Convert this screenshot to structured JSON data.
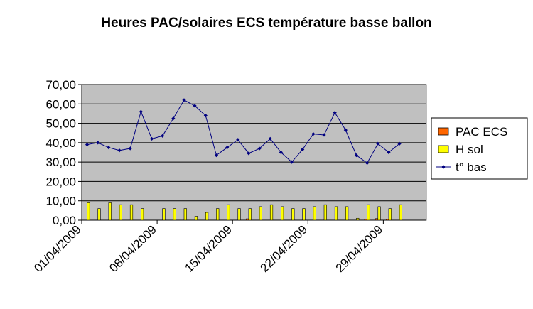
{
  "chart_data": {
    "type": "bar",
    "title": "Heures PAC/solaires ECS  température basse ballon",
    "xlabel": "",
    "ylabel": "",
    "ylim": [
      0,
      70
    ],
    "y_ticks": [
      "0,00",
      "10,00",
      "20,00",
      "30,00",
      "40,00",
      "50,00",
      "60,00",
      "70,00"
    ],
    "x_tick_labels": [
      "01/04/2009",
      "08/04/2009",
      "15/04/2009",
      "22/04/2009",
      "29/04/2009"
    ],
    "x": [
      "01/04/2009",
      "02/04/2009",
      "03/04/2009",
      "04/04/2009",
      "05/04/2009",
      "06/04/2009",
      "07/04/2009",
      "08/04/2009",
      "09/04/2009",
      "10/04/2009",
      "11/04/2009",
      "12/04/2009",
      "13/04/2009",
      "14/04/2009",
      "15/04/2009",
      "16/04/2009",
      "17/04/2009",
      "18/04/2009",
      "19/04/2009",
      "20/04/2009",
      "21/04/2009",
      "22/04/2009",
      "23/04/2009",
      "24/04/2009",
      "25/04/2009",
      "26/04/2009",
      "27/04/2009",
      "28/04/2009",
      "29/04/2009",
      "30/04/2009"
    ],
    "grid": "horizontal",
    "legend_position": "right",
    "background_color": "#c0c0c0",
    "series": [
      {
        "name": "PAC ECS",
        "kind": "bar",
        "color": "#ff6600",
        "values": [
          0,
          0,
          0,
          0,
          0,
          0,
          0,
          0,
          0,
          0,
          0,
          0,
          0,
          0,
          0,
          0.7,
          0,
          0,
          0,
          0,
          0,
          0,
          0,
          0,
          0,
          0,
          0.5,
          0.8,
          0.5,
          0
        ]
      },
      {
        "name": "H sol",
        "kind": "bar",
        "color": "#ffff00",
        "values": [
          9,
          6,
          9,
          8,
          8,
          6,
          0,
          6,
          6,
          6,
          2,
          4,
          6,
          8,
          6,
          6,
          7,
          8,
          7,
          6,
          6,
          7,
          8,
          7,
          7,
          1,
          8,
          7,
          6,
          8
        ]
      },
      {
        "name": "t° bas",
        "kind": "line",
        "color": "#000080",
        "values": [
          39,
          40,
          37.5,
          36,
          37,
          56,
          42,
          43.5,
          52.5,
          62,
          59,
          54,
          33.5,
          37.5,
          41.5,
          34.5,
          37,
          42,
          35,
          30,
          36.5,
          44.5,
          44,
          55.5,
          46.5,
          33.5,
          29.5,
          39.5,
          35,
          39.5
        ]
      }
    ]
  }
}
